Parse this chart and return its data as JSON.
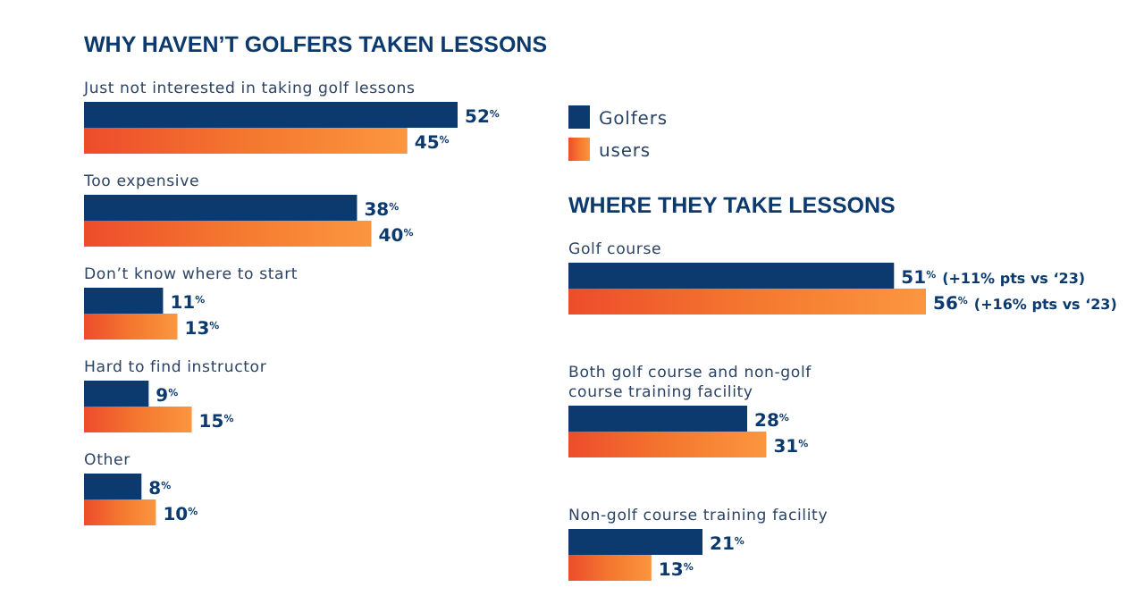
{
  "chart_data": [
    {
      "type": "bar",
      "orientation": "horizontal",
      "title": "WHY HAVEN’T GOLFERS TAKEN LESSONS",
      "categories": [
        "Just not interested in taking golf lessons",
        "Too expensive",
        "Don’t know where to start",
        "Hard to find instructor",
        "Other"
      ],
      "legend": "right",
      "series": [
        {
          "name": "Golfers",
          "color": "#0d3a6e",
          "values": [
            52,
            38,
            11,
            9,
            8
          ],
          "value_labels": [
            "52$^{%}$",
            "38$^{%}$",
            "11$^{%}$",
            "9$^{%}$",
            "8$^{%}$"
          ]
        },
        {
          "name": "users",
          "color": "#f4772f",
          "values": [
            45,
            40,
            13,
            15,
            10
          ],
          "value_labels": [
            "45$^{%}$",
            "40$^{%}$",
            "13$^{%}$",
            "15$^{%}$",
            "10$^{%}$"
          ]
        }
      ]
    },
    {
      "type": "bar",
      "orientation": "horizontal",
      "title": "WHERE THEY TAKE LESSONS",
      "categories": [
        "Golf course",
        "Both golf course and non-golf course training facility",
        "Non-golf course training facility"
      ],
      "series": [
        {
          "color": "#0d3a6e",
          "values": [
            51,
            28,
            21
          ],
          "value_labels": [
            "51$^{%}$ (+11% pts vs ‘23)",
            "28$^{%}$",
            "21$^{%}$"
          ]
        },
        {
          "color": "#f4772f",
          "values": [
            56,
            31,
            13
          ],
          "value_labels": [
            "56$^{%}$ (+16% pts vs ‘23)",
            "31$^{%}$",
            "13$^{%}$"
          ]
        }
      ]
    }
  ]
}
